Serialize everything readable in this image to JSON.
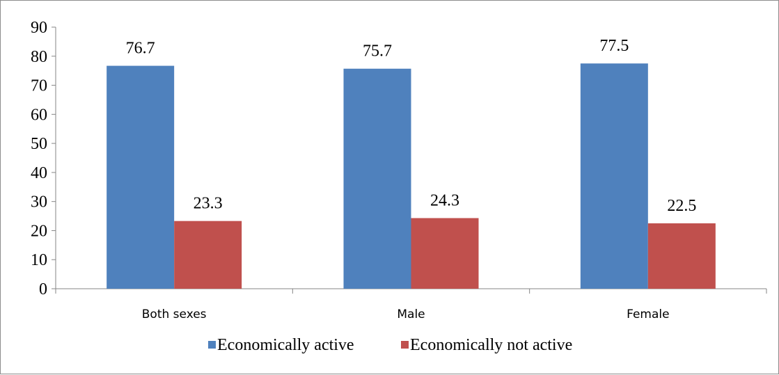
{
  "chart_data": {
    "type": "bar",
    "categories": [
      "Both sexes",
      "Male",
      "Female"
    ],
    "series": [
      {
        "name": "Economically active",
        "values": [
          76.7,
          75.7,
          77.5
        ],
        "color": "#4f81bd"
      },
      {
        "name": "Economically not active",
        "values": [
          23.3,
          24.3,
          22.5
        ],
        "color": "#c0504d"
      }
    ],
    "ylim": [
      0,
      90
    ],
    "yticks": [
      0,
      10,
      20,
      30,
      40,
      50,
      60,
      70,
      80,
      90
    ],
    "grid": false,
    "legend": "bottom",
    "data_labels": true
  }
}
